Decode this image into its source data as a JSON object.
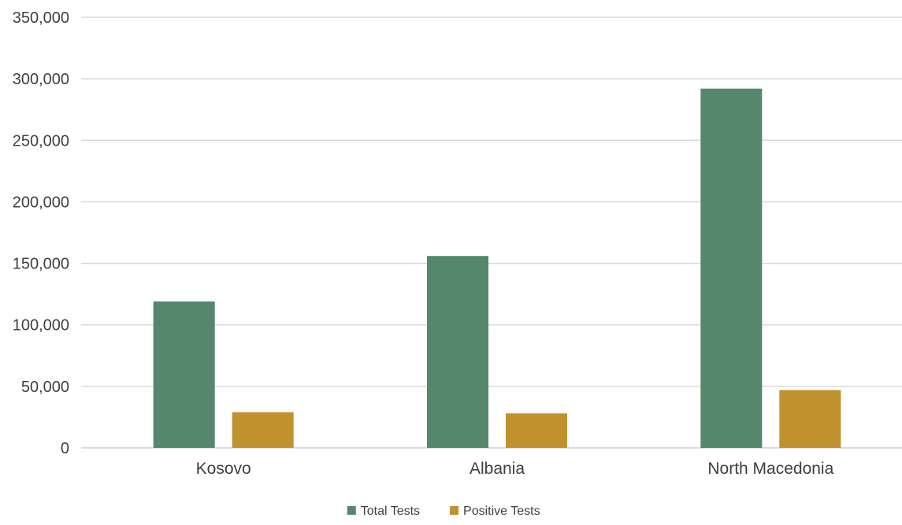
{
  "chart_data": {
    "type": "bar",
    "title": "",
    "xlabel": "",
    "ylabel": "",
    "categories": [
      "Kosovo",
      "Albania",
      "North Macedonia"
    ],
    "series": [
      {
        "name": "Total Tests",
        "color": "#54876c",
        "values": [
          119000,
          156000,
          292000
        ]
      },
      {
        "name": "Positive Tests",
        "color": "#c0912f",
        "values": [
          29000,
          28000,
          47000
        ]
      }
    ],
    "ylim": [
      0,
      350000
    ],
    "yticks": [
      0,
      50000,
      100000,
      150000,
      200000,
      250000,
      300000,
      350000
    ],
    "ytick_labels": [
      "0",
      "50,000",
      "100,000",
      "150,000",
      "200,000",
      "250,000",
      "300,000",
      "350,000"
    ],
    "grid": true,
    "legend_position": "bottom-center"
  }
}
